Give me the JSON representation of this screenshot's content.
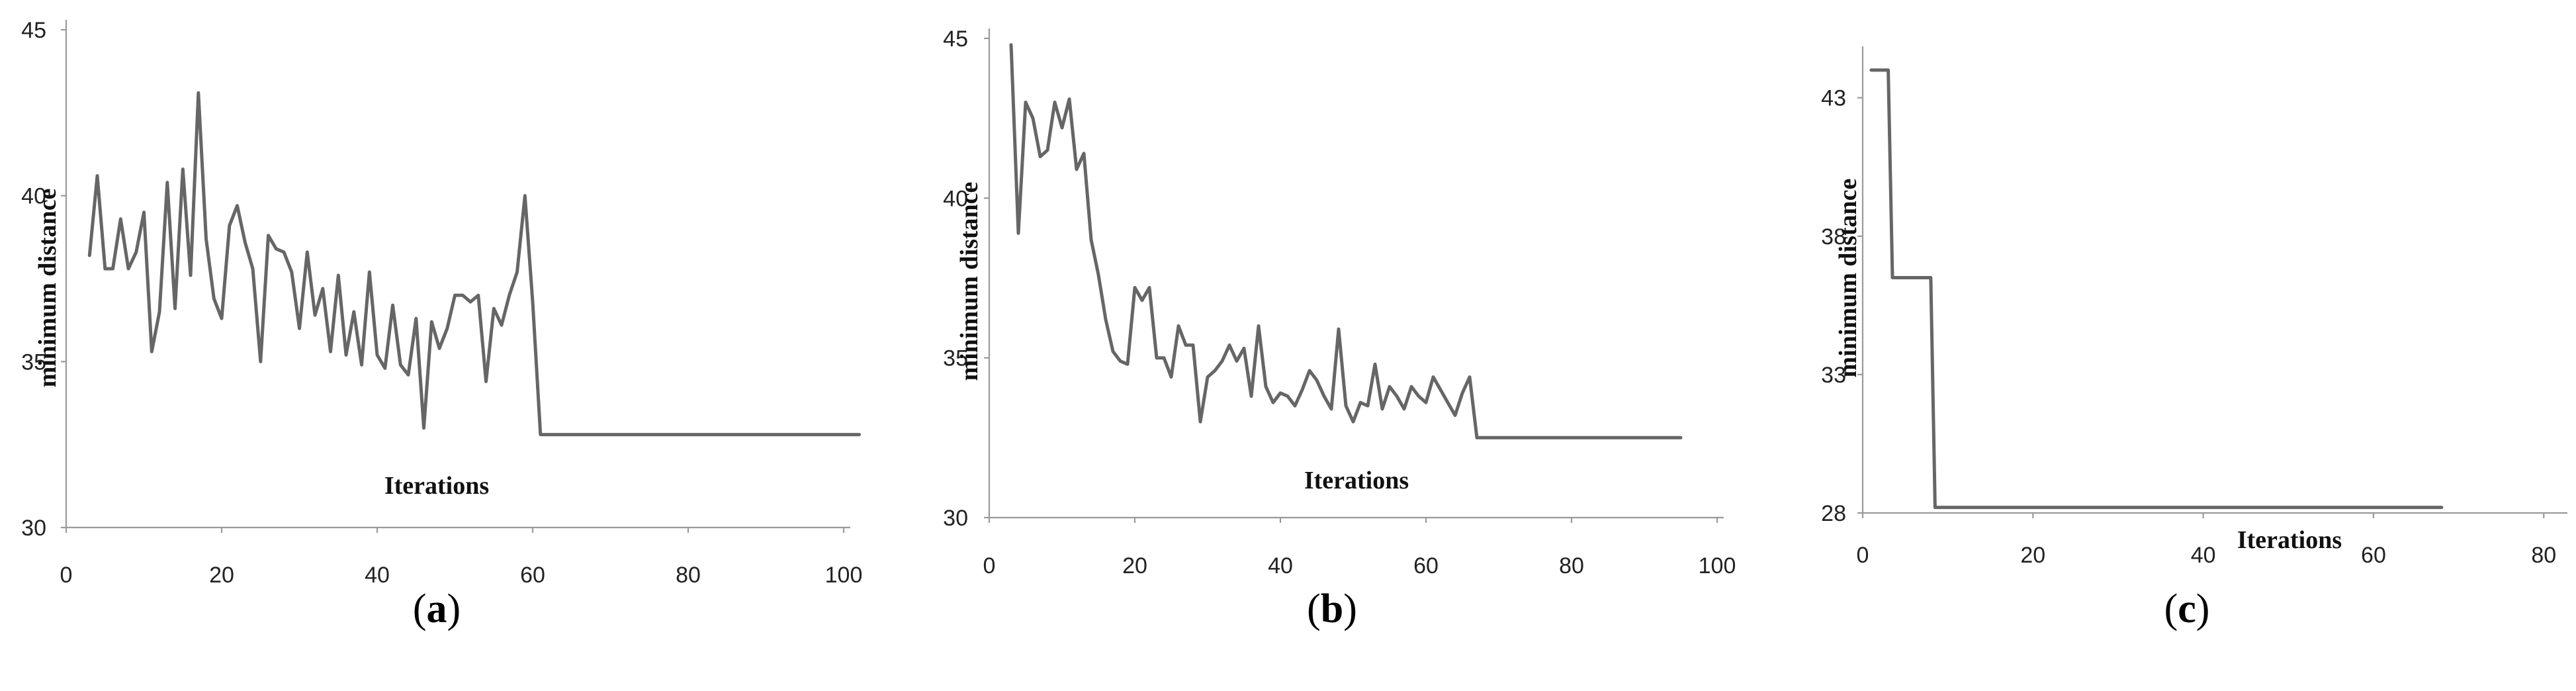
{
  "colors": {
    "series": "#666666",
    "axis": "#9a9a9a",
    "background": "#ffffff"
  },
  "chart_data": [
    {
      "panel": "a",
      "type": "line",
      "xlabel": "Iterations",
      "ylabel": "minimum distance",
      "xlim": [
        0,
        100
      ],
      "ylim": [
        30,
        45
      ],
      "xticks": [
        0,
        20,
        40,
        60,
        80,
        100
      ],
      "yticks": [
        30,
        35,
        40,
        45
      ],
      "grid": false,
      "series": [
        {
          "x": [
            3,
            4,
            5,
            6,
            7,
            8,
            9,
            10,
            11,
            12,
            13,
            14,
            15,
            16,
            17,
            18,
            19,
            20,
            21,
            22,
            23,
            24,
            25,
            26,
            27,
            28,
            29,
            30,
            31,
            32,
            33,
            34,
            35,
            36,
            37,
            38,
            39,
            40,
            41,
            42,
            43,
            44,
            45,
            46,
            47,
            48,
            49,
            50,
            51,
            52,
            53,
            54,
            55,
            56,
            57,
            58,
            59,
            60,
            61,
            62,
            80,
            100,
            102
          ],
          "y": [
            38.2,
            40.6,
            37.8,
            37.8,
            39.3,
            37.8,
            38.3,
            39.5,
            35.3,
            36.5,
            40.4,
            36.6,
            40.8,
            37.6,
            43.1,
            38.7,
            36.9,
            36.3,
            39.1,
            39.7,
            38.6,
            37.8,
            35.0,
            38.8,
            38.4,
            38.3,
            37.7,
            36.0,
            38.3,
            36.4,
            37.2,
            35.3,
            37.6,
            35.2,
            36.5,
            34.9,
            37.7,
            35.2,
            34.8,
            36.7,
            34.9,
            34.6,
            36.3,
            33.0,
            36.2,
            35.4,
            36.0,
            37.0,
            37.0,
            36.8,
            37.0,
            34.4,
            36.6,
            36.1,
            37.0,
            37.7,
            40.0,
            36.8,
            32.8,
            32.8,
            32.8,
            32.8,
            32.8
          ]
        }
      ]
    },
    {
      "panel": "b",
      "type": "line",
      "xlabel": "Iterations",
      "ylabel": "minimum distance",
      "xlim": [
        0,
        100
      ],
      "ylim": [
        30,
        45
      ],
      "xticks": [
        0,
        20,
        40,
        60,
        80,
        100
      ],
      "yticks": [
        30,
        35,
        40,
        45
      ],
      "grid": false,
      "series": [
        {
          "x": [
            3,
            4,
            5,
            6,
            7,
            8,
            9,
            10,
            11,
            12,
            13,
            14,
            15,
            16,
            17,
            18,
            19,
            20,
            21,
            22,
            23,
            24,
            25,
            26,
            27,
            28,
            29,
            30,
            31,
            32,
            33,
            34,
            35,
            36,
            37,
            38,
            39,
            40,
            41,
            42,
            43,
            44,
            45,
            46,
            47,
            48,
            49,
            50,
            51,
            52,
            53,
            54,
            55,
            56,
            57,
            58,
            59,
            60,
            61,
            62,
            63,
            64,
            65,
            66,
            67,
            80,
            95
          ],
          "y": [
            44.8,
            38.9,
            43.0,
            42.5,
            41.3,
            41.5,
            43.0,
            42.2,
            43.1,
            40.9,
            41.4,
            38.7,
            37.6,
            36.2,
            35.2,
            34.9,
            34.8,
            37.2,
            36.8,
            37.2,
            35.0,
            35.0,
            34.4,
            36.0,
            35.4,
            35.4,
            33.0,
            34.4,
            34.6,
            34.9,
            35.4,
            34.9,
            35.3,
            33.8,
            36.0,
            34.1,
            33.6,
            33.9,
            33.8,
            33.5,
            34.0,
            34.6,
            34.3,
            33.8,
            33.4,
            35.9,
            33.5,
            33.0,
            33.6,
            33.5,
            34.8,
            33.4,
            34.1,
            33.8,
            33.4,
            34.1,
            33.8,
            33.6,
            34.4,
            34.0,
            33.6,
            33.2,
            33.9,
            34.4,
            32.5,
            32.5,
            32.5
          ]
        }
      ]
    },
    {
      "panel": "c",
      "type": "line",
      "xlabel": "Iterations",
      "ylabel": "minimum distance",
      "xlim": [
        0,
        82
      ],
      "ylim": [
        28,
        44.5
      ],
      "xticks": [
        0,
        20,
        40,
        60,
        80
      ],
      "yticks": [
        28,
        33,
        38,
        43
      ],
      "grid": false,
      "series": [
        {
          "x": [
            1,
            3,
            3.5,
            8,
            8.5,
            68
          ],
          "y": [
            44.0,
            44.0,
            36.5,
            36.5,
            28.2,
            28.2
          ]
        }
      ]
    }
  ],
  "panel_labels": [
    "(a)",
    "(b)",
    "(c)"
  ]
}
